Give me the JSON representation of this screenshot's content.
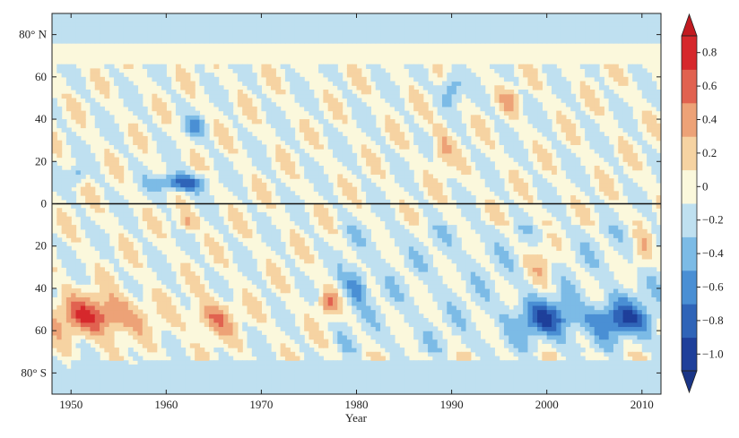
{
  "chart_data": {
    "type": "heatmap",
    "title": "",
    "xlabel": "Year",
    "ylabel": "",
    "xlim": [
      1948,
      2012
    ],
    "ylim": [
      -90,
      90
    ],
    "x_ticks": [
      1950,
      1960,
      1970,
      1980,
      1990,
      2000,
      2010
    ],
    "x_tick_labels": [
      "1950",
      "1960",
      "1970",
      "1980",
      "1990",
      "2000",
      "2010"
    ],
    "y_ticks": [
      80,
      60,
      40,
      20,
      0,
      -20,
      -40,
      -60,
      -80
    ],
    "y_tick_labels": [
      "80° N",
      "60",
      "40",
      "20",
      "0",
      "20",
      "40",
      "60",
      "80° S"
    ],
    "zero_line_latitude": 0,
    "colorbar": {
      "ticks": [
        0.8,
        0.6,
        0.4,
        0.2,
        0,
        -0.2,
        -0.4,
        -0.6,
        -0.8,
        -1.0
      ],
      "tick_labels": [
        "0.8",
        "0.6",
        "0.4",
        "0.2",
        "0",
        "−0.2",
        "−0.4",
        "−0.6",
        "−0.8",
        "−1.0"
      ],
      "range": [
        -1.1,
        0.9
      ],
      "extend": "both"
    },
    "contour_levels": [
      -1.1,
      -0.9,
      -0.7,
      -0.5,
      -0.3,
      -0.1,
      0.1,
      0.3,
      0.5,
      0.7,
      0.9
    ],
    "level_colors": [
      "#1e3f9a",
      "#2f64b8",
      "#4a8fd4",
      "#7cbbe6",
      "#bfe0f0",
      "#fbf8dc",
      "#f6d3a2",
      "#eda277",
      "#e16250",
      "#d6282c"
    ],
    "features": [
      {
        "year_start": 1959,
        "year_end": 1964,
        "lat_min": 6,
        "lat_max": 14,
        "value": -0.8
      },
      {
        "year_start": 1948,
        "year_end": 1957,
        "lat_min": -62,
        "lat_max": -44,
        "value": 0.7
      },
      {
        "year_start": 1963,
        "year_end": 1967,
        "lat_min": -62,
        "lat_max": -46,
        "value": 0.5
      },
      {
        "year_start": 1976,
        "year_end": 1978,
        "lat_min": -52,
        "lat_max": -42,
        "value": 0.5
      },
      {
        "year_start": 1961,
        "year_end": 1963,
        "lat_min": -12,
        "lat_max": -4,
        "value": 0.4
      },
      {
        "year_start": 1997,
        "year_end": 2003,
        "lat_min": -62,
        "lat_max": -46,
        "value": -0.7
      },
      {
        "year_start": 2005,
        "year_end": 2011,
        "lat_min": -62,
        "lat_max": -46,
        "value": -0.7
      },
      {
        "year_start": 1979,
        "year_end": 1981,
        "lat_min": -46,
        "lat_max": -30,
        "value": -0.5
      },
      {
        "year_start": 1989,
        "year_end": 1991,
        "lat_min": 48,
        "lat_max": 62,
        "value": -0.5
      },
      {
        "year_start": 1988,
        "year_end": 1990,
        "lat_min": 16,
        "lat_max": 36,
        "value": 0.3
      },
      {
        "year_start": 1995,
        "year_end": 1997,
        "lat_min": 44,
        "lat_max": 54,
        "value": 0.3
      },
      {
        "year_start": 1998,
        "year_end": 2001,
        "lat_min": -40,
        "lat_max": -16,
        "value": 0.3
      },
      {
        "year_start": 2009,
        "year_end": 2011,
        "lat_min": -32,
        "lat_max": -12,
        "value": 0.3
      },
      {
        "year_start": 1962,
        "year_end": 1964,
        "lat_min": 32,
        "lat_max": 42,
        "value": -0.4
      },
      {
        "year_start": 1950,
        "year_end": 1951,
        "lat_min": 10,
        "lat_max": 18,
        "value": -0.4
      }
    ]
  }
}
